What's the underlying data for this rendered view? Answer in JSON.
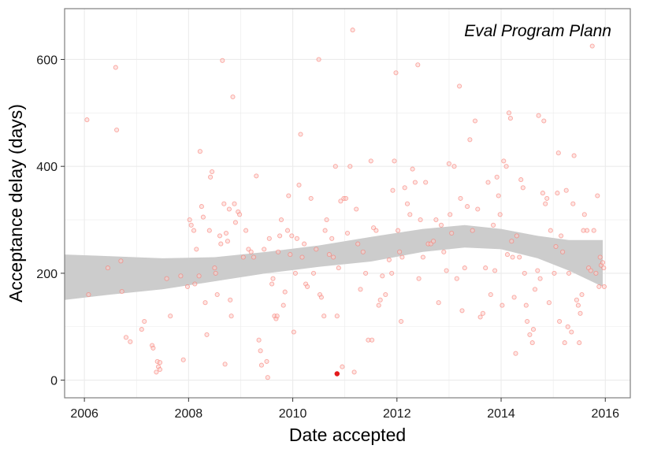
{
  "chart_data": {
    "type": "scatter",
    "title": "",
    "annotation": "Eval Program Plann",
    "xlabel": "Date accepted",
    "ylabel": "Acceptance delay (days)",
    "xlim": [
      2005.62,
      2016.48
    ],
    "ylim": [
      -33,
      695
    ],
    "xticks": [
      2006,
      2008,
      2010,
      2012,
      2014,
      2016
    ],
    "yticks": [
      0,
      200,
      400,
      600
    ],
    "grid": true,
    "colors": {
      "points": "#f8766d",
      "point_fill": "#fbd0cc",
      "highlight": "#e41a1c",
      "band": "#cccccc",
      "grid": "#ebebeb",
      "border": "#7f7f7f"
    },
    "points": [
      [
        2006.05,
        487
      ],
      [
        2006.08,
        160
      ],
      [
        2006.45,
        210
      ],
      [
        2006.6,
        585
      ],
      [
        2006.62,
        468
      ],
      [
        2006.7,
        223
      ],
      [
        2006.72,
        166
      ],
      [
        2006.8,
        80
      ],
      [
        2006.88,
        72
      ],
      [
        2007.1,
        95
      ],
      [
        2007.15,
        110
      ],
      [
        2007.3,
        65
      ],
      [
        2007.32,
        60
      ],
      [
        2007.38,
        15
      ],
      [
        2007.4,
        35
      ],
      [
        2007.42,
        25
      ],
      [
        2007.45,
        20
      ],
      [
        2007.45,
        33
      ],
      [
        2007.58,
        190
      ],
      [
        2007.65,
        120
      ],
      [
        2007.85,
        195
      ],
      [
        2007.9,
        38
      ],
      [
        2007.98,
        175
      ],
      [
        2008.02,
        300
      ],
      [
        2008.05,
        290
      ],
      [
        2008.1,
        280
      ],
      [
        2008.12,
        180
      ],
      [
        2008.15,
        245
      ],
      [
        2008.2,
        195
      ],
      [
        2008.22,
        428
      ],
      [
        2008.25,
        325
      ],
      [
        2008.28,
        305
      ],
      [
        2008.32,
        145
      ],
      [
        2008.35,
        85
      ],
      [
        2008.4,
        280
      ],
      [
        2008.42,
        380
      ],
      [
        2008.45,
        390
      ],
      [
        2008.5,
        210
      ],
      [
        2008.52,
        200
      ],
      [
        2008.55,
        160
      ],
      [
        2008.6,
        270
      ],
      [
        2008.62,
        255
      ],
      [
        2008.65,
        598
      ],
      [
        2008.68,
        330
      ],
      [
        2008.7,
        30
      ],
      [
        2008.72,
        275
      ],
      [
        2008.75,
        260
      ],
      [
        2008.78,
        320
      ],
      [
        2008.8,
        150
      ],
      [
        2008.82,
        120
      ],
      [
        2008.85,
        530
      ],
      [
        2008.88,
        330
      ],
      [
        2008.9,
        295
      ],
      [
        2008.95,
        315
      ],
      [
        2008.98,
        310
      ],
      [
        2009.05,
        230
      ],
      [
        2009.1,
        280
      ],
      [
        2009.15,
        245
      ],
      [
        2009.2,
        240
      ],
      [
        2009.25,
        230
      ],
      [
        2009.3,
        382
      ],
      [
        2009.35,
        75
      ],
      [
        2009.38,
        55
      ],
      [
        2009.4,
        28
      ],
      [
        2009.45,
        245
      ],
      [
        2009.5,
        35
      ],
      [
        2009.52,
        5
      ],
      [
        2009.55,
        265
      ],
      [
        2009.6,
        180
      ],
      [
        2009.62,
        190
      ],
      [
        2009.65,
        120
      ],
      [
        2009.68,
        115
      ],
      [
        2009.7,
        120
      ],
      [
        2009.72,
        240
      ],
      [
        2009.75,
        270
      ],
      [
        2009.78,
        300
      ],
      [
        2009.82,
        140
      ],
      [
        2009.85,
        165
      ],
      [
        2009.9,
        280
      ],
      [
        2009.92,
        345
      ],
      [
        2009.95,
        235
      ],
      [
        2009.98,
        270
      ],
      [
        2010.02,
        90
      ],
      [
        2010.05,
        200
      ],
      [
        2010.08,
        265
      ],
      [
        2010.12,
        365
      ],
      [
        2010.15,
        460
      ],
      [
        2010.18,
        230
      ],
      [
        2010.22,
        255
      ],
      [
        2010.25,
        180
      ],
      [
        2010.28,
        175
      ],
      [
        2010.35,
        340
      ],
      [
        2010.4,
        200
      ],
      [
        2010.45,
        245
      ],
      [
        2010.5,
        600
      ],
      [
        2010.52,
        160
      ],
      [
        2010.55,
        155
      ],
      [
        2010.6,
        120
      ],
      [
        2010.62,
        280
      ],
      [
        2010.65,
        300
      ],
      [
        2010.7,
        235
      ],
      [
        2010.75,
        265
      ],
      [
        2010.78,
        230
      ],
      [
        2010.82,
        400
      ],
      [
        2010.85,
        120
      ],
      [
        2010.88,
        210
      ],
      [
        2010.92,
        335
      ],
      [
        2010.95,
        25
      ],
      [
        2010.98,
        340
      ],
      [
        2011.02,
        340
      ],
      [
        2011.05,
        275
      ],
      [
        2011.1,
        400
      ],
      [
        2011.15,
        655
      ],
      [
        2011.18,
        15
      ],
      [
        2011.22,
        320
      ],
      [
        2011.25,
        255
      ],
      [
        2011.3,
        170
      ],
      [
        2011.35,
        240
      ],
      [
        2011.4,
        200
      ],
      [
        2011.45,
        75
      ],
      [
        2011.5,
        410
      ],
      [
        2011.52,
        75
      ],
      [
        2011.55,
        285
      ],
      [
        2011.6,
        280
      ],
      [
        2011.65,
        140
      ],
      [
        2011.68,
        150
      ],
      [
        2011.72,
        195
      ],
      [
        2011.78,
        160
      ],
      [
        2011.85,
        225
      ],
      [
        2011.9,
        200
      ],
      [
        2011.92,
        355
      ],
      [
        2011.95,
        410
      ],
      [
        2011.98,
        575
      ],
      [
        2012.02,
        280
      ],
      [
        2012.05,
        240
      ],
      [
        2012.08,
        110
      ],
      [
        2012.1,
        230
      ],
      [
        2012.15,
        360
      ],
      [
        2012.2,
        330
      ],
      [
        2012.25,
        310
      ],
      [
        2012.3,
        395
      ],
      [
        2012.35,
        370
      ],
      [
        2012.4,
        590
      ],
      [
        2012.42,
        190
      ],
      [
        2012.45,
        300
      ],
      [
        2012.5,
        230
      ],
      [
        2012.55,
        370
      ],
      [
        2012.6,
        255
      ],
      [
        2012.65,
        255
      ],
      [
        2012.7,
        260
      ],
      [
        2012.75,
        300
      ],
      [
        2012.8,
        145
      ],
      [
        2012.85,
        290
      ],
      [
        2012.9,
        240
      ],
      [
        2012.95,
        205
      ],
      [
        2013.0,
        405
      ],
      [
        2013.02,
        310
      ],
      [
        2013.05,
        275
      ],
      [
        2013.1,
        400
      ],
      [
        2013.15,
        190
      ],
      [
        2013.2,
        550
      ],
      [
        2013.22,
        340
      ],
      [
        2013.25,
        130
      ],
      [
        2013.3,
        210
      ],
      [
        2013.35,
        325
      ],
      [
        2013.4,
        450
      ],
      [
        2013.45,
        280
      ],
      [
        2013.5,
        485
      ],
      [
        2013.55,
        320
      ],
      [
        2013.6,
        118
      ],
      [
        2013.65,
        125
      ],
      [
        2013.7,
        210
      ],
      [
        2013.75,
        370
      ],
      [
        2013.8,
        160
      ],
      [
        2013.85,
        290
      ],
      [
        2013.88,
        205
      ],
      [
        2013.92,
        380
      ],
      [
        2013.95,
        345
      ],
      [
        2013.98,
        310
      ],
      [
        2014.02,
        140
      ],
      [
        2014.05,
        410
      ],
      [
        2014.1,
        400
      ],
      [
        2014.12,
        235
      ],
      [
        2014.15,
        500
      ],
      [
        2014.18,
        490
      ],
      [
        2014.2,
        260
      ],
      [
        2014.22,
        230
      ],
      [
        2014.25,
        155
      ],
      [
        2014.28,
        50
      ],
      [
        2014.3,
        270
      ],
      [
        2014.35,
        230
      ],
      [
        2014.38,
        375
      ],
      [
        2014.42,
        360
      ],
      [
        2014.45,
        200
      ],
      [
        2014.48,
        140
      ],
      [
        2014.5,
        110
      ],
      [
        2014.55,
        85
      ],
      [
        2014.6,
        70
      ],
      [
        2014.62,
        95
      ],
      [
        2014.65,
        170
      ],
      [
        2014.7,
        205
      ],
      [
        2014.72,
        495
      ],
      [
        2014.75,
        190
      ],
      [
        2014.8,
        350
      ],
      [
        2014.82,
        485
      ],
      [
        2014.85,
        330
      ],
      [
        2014.88,
        340
      ],
      [
        2014.92,
        145
      ],
      [
        2014.95,
        280
      ],
      [
        2015.02,
        200
      ],
      [
        2015.05,
        250
      ],
      [
        2015.08,
        350
      ],
      [
        2015.1,
        425
      ],
      [
        2015.12,
        110
      ],
      [
        2015.15,
        270
      ],
      [
        2015.18,
        240
      ],
      [
        2015.22,
        70
      ],
      [
        2015.25,
        355
      ],
      [
        2015.28,
        100
      ],
      [
        2015.3,
        200
      ],
      [
        2015.35,
        90
      ],
      [
        2015.38,
        330
      ],
      [
        2015.4,
        420
      ],
      [
        2015.45,
        150
      ],
      [
        2015.48,
        140
      ],
      [
        2015.5,
        70
      ],
      [
        2015.52,
        125
      ],
      [
        2015.55,
        160
      ],
      [
        2015.58,
        280
      ],
      [
        2015.6,
        310
      ],
      [
        2015.65,
        280
      ],
      [
        2015.68,
        210
      ],
      [
        2015.72,
        205
      ],
      [
        2015.75,
        625
      ],
      [
        2015.78,
        280
      ],
      [
        2015.82,
        200
      ],
      [
        2015.85,
        345
      ],
      [
        2015.88,
        175
      ],
      [
        2015.9,
        230
      ],
      [
        2015.92,
        215
      ],
      [
        2015.95,
        220
      ],
      [
        2015.97,
        210
      ],
      [
        2015.98,
        175
      ]
    ],
    "highlight_point": [
      2010.85,
      12
    ],
    "smooth": {
      "x": [
        2005.62,
        2006.5,
        2007.5,
        2008.5,
        2009.5,
        2010.5,
        2011.5,
        2012.5,
        2013.3,
        2014.0,
        2014.7,
        2015.3,
        2015.95
      ],
      "lower": [
        150,
        160,
        170,
        185,
        200,
        212,
        222,
        240,
        248,
        245,
        228,
        205,
        175
      ],
      "upper": [
        235,
        232,
        228,
        230,
        240,
        252,
        268,
        283,
        290,
        283,
        270,
        262,
        262
      ]
    }
  }
}
